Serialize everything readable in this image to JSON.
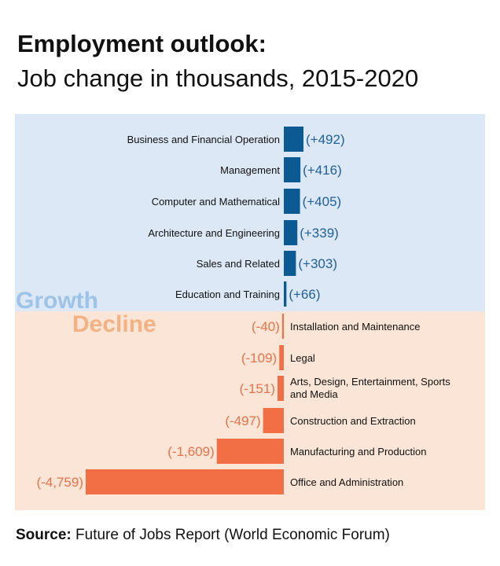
{
  "title": "Employment outlook:",
  "subtitle": "Job change in thousands, 2015-2020",
  "source": {
    "label": "Source:",
    "text": "Future of Jobs Report (World Economic Forum)"
  },
  "colors": {
    "growth_bar": "#0B5A94",
    "growth_label": "#1F5F9A",
    "growth_bg": "#DCE8F6",
    "growth_tag": "#9DC3E6",
    "decline_bar": "#F26E45",
    "decline_label": "#E8724A",
    "decline_bg": "#FBE5D6",
    "decline_tag": "#F4B183"
  },
  "chart_data": {
    "type": "bar",
    "orientation": "horizontal",
    "unit": "thousands",
    "groups": [
      {
        "name": "Growth",
        "categories": [
          "Business and Financial Operation",
          "Management",
          "Computer  and Mathematical",
          "Architecture and Engineering",
          "Sales and Related",
          "Education and Training"
        ],
        "values": [
          492,
          416,
          405,
          339,
          303,
          66
        ],
        "labels": [
          "(+492)",
          "(+416)",
          "(+405)",
          "(+339)",
          "(+303)",
          "(+66)"
        ]
      },
      {
        "name": "Decline",
        "categories": [
          "Installation and Maintenance",
          "Legal",
          "Arts, Design, Entertainment, Sports and Media",
          "Construction and Extraction",
          "Manufacturing and Production",
          "Office and Administration"
        ],
        "values": [
          -40,
          -109,
          -151,
          -497,
          -1609,
          -4759
        ],
        "labels": [
          "(-40)",
          "(-109)",
          "(-151)",
          "(-497)",
          "(-1,609)",
          "(-4,759)"
        ]
      }
    ]
  }
}
